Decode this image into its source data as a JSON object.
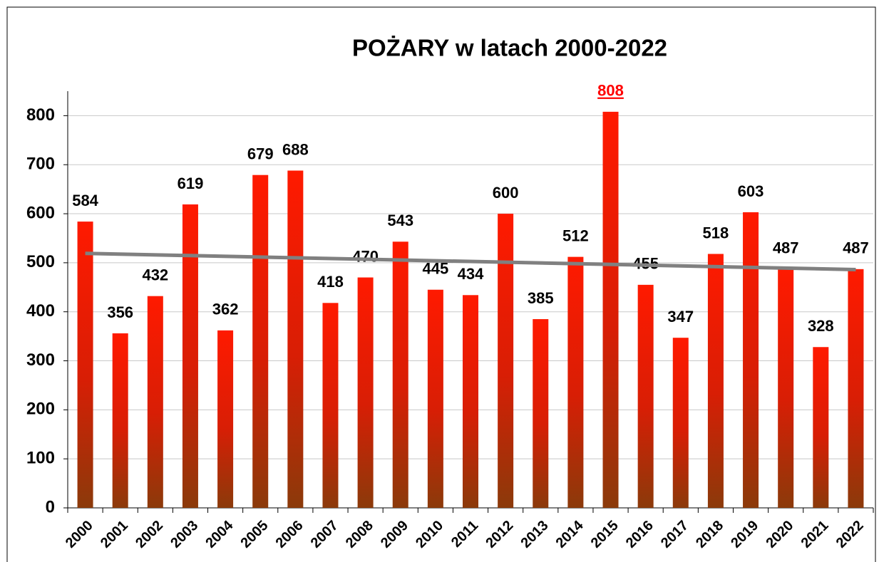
{
  "chart_data": {
    "type": "bar",
    "title": "POŻARY w latach 2000-2022",
    "categories": [
      "2000",
      "2001",
      "2002",
      "2003",
      "2004",
      "2005",
      "2006",
      "2007",
      "2008",
      "2009",
      "2010",
      "2011",
      "2012",
      "2013",
      "2014",
      "2015",
      "2016",
      "2017",
      "2018",
      "2019",
      "2020",
      "2021",
      "2022"
    ],
    "values": [
      584,
      356,
      432,
      619,
      362,
      679,
      688,
      418,
      470,
      543,
      445,
      434,
      600,
      385,
      512,
      808,
      455,
      347,
      518,
      603,
      487,
      328,
      487
    ],
    "color": "#ff1a00",
    "ylim": [
      0,
      850
    ],
    "yticks": [
      0,
      100,
      200,
      300,
      400,
      500,
      600,
      700,
      800
    ],
    "grid": true,
    "trendline": {
      "color": "#808080"
    },
    "highlight": {
      "category": "2015",
      "color": "#ff0000"
    }
  }
}
